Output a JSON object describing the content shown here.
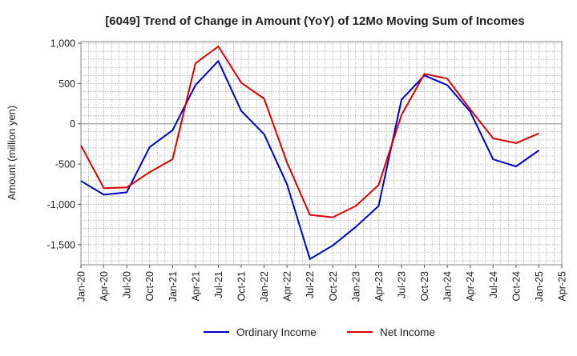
{
  "chart_data": {
    "type": "line",
    "title": "[6049]  Trend of Change in Amount (YoY) of 12Mo Moving Sum of Incomes",
    "xlabel": "",
    "ylabel": "Amount (million yen)",
    "ylim": [
      -1750,
      1020
    ],
    "yticks": [
      1000,
      500,
      0,
      -500,
      -1000,
      -1500
    ],
    "ytick_labels": [
      "1,000",
      "500",
      "0",
      "-500",
      "-1,000",
      "-1,500"
    ],
    "categories": [
      "Jan-20",
      "Apr-20",
      "Jul-20",
      "Oct-20",
      "Jan-21",
      "Apr-21",
      "Jul-21",
      "Oct-21",
      "Jan-22",
      "Apr-22",
      "Jul-22",
      "Oct-22",
      "Jan-23",
      "Apr-23",
      "Jul-23",
      "Oct-23",
      "Jan-24",
      "Apr-24",
      "Jul-24",
      "Oct-24",
      "Jan-25",
      "Apr-25"
    ],
    "grid": true,
    "legend_position": "bottom-center",
    "series": [
      {
        "name": "Ordinary Income",
        "color": "#0000cc",
        "values": [
          -710,
          -880,
          -850,
          -290,
          -80,
          480,
          780,
          160,
          -130,
          -750,
          -1680,
          -1510,
          -1280,
          -1020,
          300,
          600,
          480,
          150,
          -440,
          -530,
          -330,
          null
        ]
      },
      {
        "name": "Net Income",
        "color": "#dd0000",
        "values": [
          -270,
          -800,
          -790,
          -600,
          -440,
          750,
          960,
          510,
          310,
          -480,
          -1130,
          -1160,
          -1020,
          -760,
          110,
          620,
          560,
          180,
          -180,
          -240,
          -120,
          null
        ]
      }
    ]
  }
}
